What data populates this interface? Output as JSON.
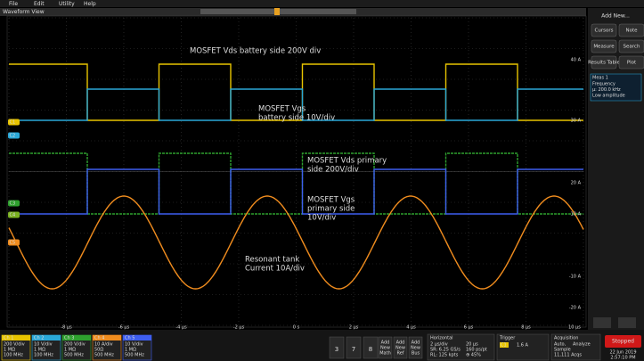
{
  "menu": [
    "File",
    "Edit",
    "Utility",
    "Help"
  ],
  "view_title": "Waveform View",
  "annotations": [
    {
      "color": "#e8c400",
      "lines": [
        "MOSFET Vds battery side 200V div"
      ]
    },
    {
      "color": "#2aa8d8",
      "lines": [
        "MOSFET Vgs",
        "battery side 10V/div"
      ]
    },
    {
      "color": "#2ea02e",
      "lines": [
        "MOSFET Vds primary",
        "side 200V/div"
      ]
    },
    {
      "color": "#3e5ef0",
      "lines": [
        "MOSFET Vgs",
        "primary side",
        "10V/div"
      ]
    },
    {
      "color": "#f08c1e",
      "lines": [
        "Resonant tank",
        "Current 10A/div"
      ]
    }
  ],
  "channel_markers": [
    "C1",
    "C2",
    "C3",
    "C4",
    "C5"
  ],
  "y_labels": [
    "40 A",
    "30 A",
    "20 A",
    "10 A",
    "-10 A",
    "-20 A"
  ],
  "time_labels": [
    "-8 μs",
    "-6 μs",
    "-4 μs",
    "-2 μs",
    "0 s",
    "2 μs",
    "4 μs",
    "6 μs",
    "8 μs",
    "10 μs"
  ],
  "side_panel": {
    "title": "Add New...",
    "buttons": [
      "Cursors",
      "Note",
      "Measure",
      "Search",
      "Results Table",
      "Plot"
    ],
    "measurement": {
      "name": "Meas 1",
      "lines": [
        "Frequency",
        "μ: 200.0 kHz",
        "Low amplitude"
      ]
    }
  },
  "channels": [
    {
      "name": "Ch 1",
      "color": "#e8c400",
      "lines": [
        "200 V/div",
        "1 MΩ",
        "100 MHz"
      ]
    },
    {
      "name": "Ch 2",
      "color": "#2aa8d8",
      "lines": [
        "10 V/div",
        "1 MΩ",
        "100 MHz"
      ]
    },
    {
      "name": "Ch 3",
      "color": "#2ea02e",
      "lines": [
        "200 V/div",
        "1 MΩ",
        "500 MHz"
      ]
    },
    {
      "name": "Ch 4",
      "color": "#f08c1e",
      "lines": [
        "10 A/div",
        "50Ω",
        "500 MHz"
      ]
    },
    {
      "name": "Ch 5",
      "color": "#3e5ef0",
      "lines": [
        "10 V/div",
        "1 MΩ",
        "500 MHz"
      ]
    }
  ],
  "number_buttons": [
    "3",
    "7",
    "8"
  ],
  "add_buttons": [
    [
      "Add",
      "New",
      "Math"
    ],
    [
      "Add",
      "New",
      "Ref"
    ],
    [
      "Add",
      "New",
      "Bus"
    ]
  ],
  "horizontal": {
    "title": "Horizontal",
    "lines": [
      "2 μs/div",
      "SR: 6.25 GS/s",
      "RL: 125 kpts"
    ],
    "lines2": [
      "20 μs",
      "160 ps/pt",
      "⊕ 45%"
    ]
  },
  "trigger": {
    "title": "Trigger",
    "source": "C1",
    "level": "1.6 A"
  },
  "acquisition": {
    "title": "Acquisition",
    "lines": [
      "Auto,",
      "Sample",
      "11,111 Acqs"
    ],
    "analyze": "Analyze"
  },
  "status": "Stopped",
  "date": "22 Jun 2019",
  "time": "2:57:10 PM"
}
